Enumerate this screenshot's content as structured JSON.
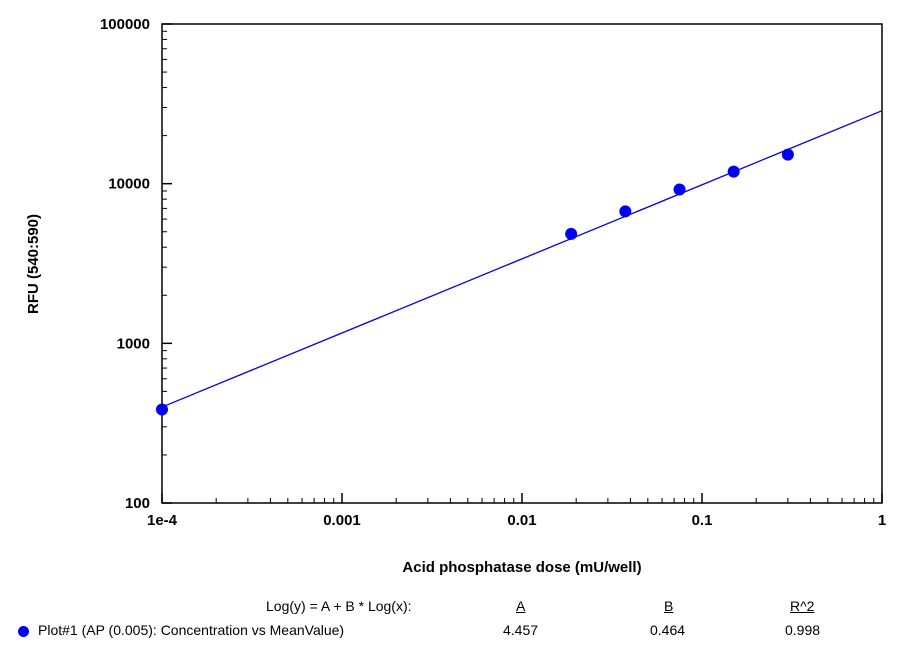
{
  "chart_data": {
    "type": "scatter",
    "xlabel": "Acid phosphatase dose (mU/well)",
    "ylabel": "RFU (540:590)",
    "xscale": "log",
    "yscale": "log",
    "xlim": [
      0.0001,
      1
    ],
    "ylim": [
      100,
      100000
    ],
    "x_tick_labels": [
      "1e-4",
      "0.001",
      "0.01",
      "0.1",
      "1"
    ],
    "y_tick_labels": [
      "100",
      "1000",
      "10000",
      "100000"
    ],
    "grid": false,
    "series": [
      {
        "name": "Plot#1 (AP (0.005): Concentration vs MeanValue)",
        "color": "#0000ee",
        "points": [
          {
            "x": 0.0001,
            "y": 385
          },
          {
            "x": 0.01875,
            "y": 4850
          },
          {
            "x": 0.0375,
            "y": 6700
          },
          {
            "x": 0.075,
            "y": 9200
          },
          {
            "x": 0.15,
            "y": 11900
          },
          {
            "x": 0.3,
            "y": 15200
          }
        ],
        "fit": {
          "equation": "Log(y) = A + B * Log(x):",
          "A": 4.457,
          "B": 0.464,
          "R2": 0.998
        }
      }
    ]
  },
  "fit_table": {
    "equation_label": "Log(y) = A + B * Log(x):",
    "header_a": "A",
    "header_b": "B",
    "header_r2": "R^2",
    "row": {
      "label": "Plot#1 (AP (0.005): Concentration vs MeanValue)",
      "a": "4.457",
      "b": "0.464",
      "r2": "0.998",
      "color": "#0000ee"
    }
  }
}
